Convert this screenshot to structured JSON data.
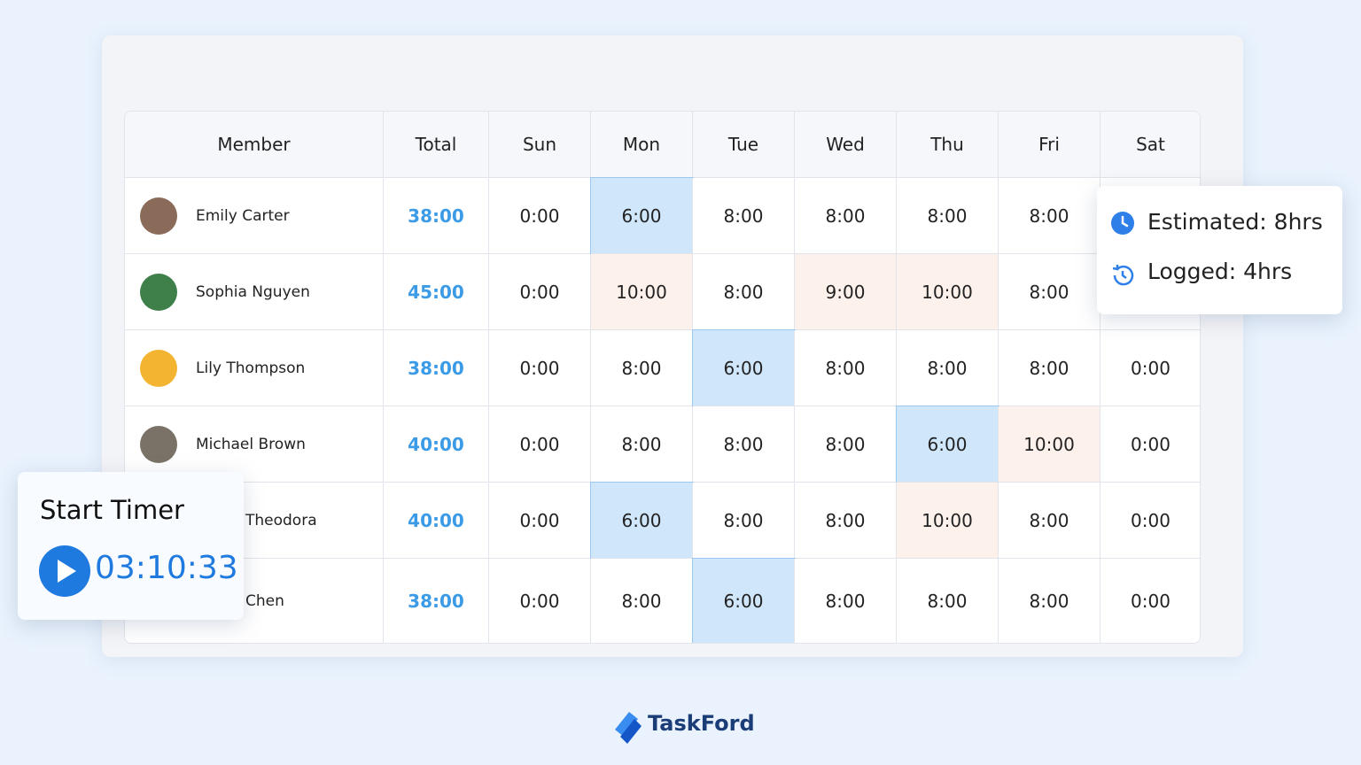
{
  "table": {
    "columns": [
      "Member",
      "Total",
      "Sun",
      "Mon",
      "Tue",
      "Wed",
      "Thu",
      "Fri",
      "Sat"
    ],
    "rows": [
      {
        "member": "Emily Carter",
        "total": "38:00",
        "days": [
          "0:00",
          "6:00",
          "8:00",
          "8:00",
          "8:00",
          "8:00",
          null
        ]
      },
      {
        "member": "Sophia Nguyen",
        "total": "45:00",
        "days": [
          "0:00",
          "10:00",
          "8:00",
          "9:00",
          "10:00",
          "8:00",
          null
        ]
      },
      {
        "member": "Lily Thompson",
        "total": "38:00",
        "days": [
          "0:00",
          "8:00",
          "6:00",
          "8:00",
          "8:00",
          "8:00",
          "0:00"
        ]
      },
      {
        "member": "Michael Brown",
        "total": "40:00",
        "days": [
          "0:00",
          "8:00",
          "8:00",
          "8:00",
          "6:00",
          "10:00",
          "0:00"
        ]
      },
      {
        "member": "Theodora",
        "total": "40:00",
        "days": [
          "0:00",
          "6:00",
          "8:00",
          "8:00",
          "10:00",
          "8:00",
          "0:00"
        ]
      },
      {
        "member": "Chen",
        "total": "38:00",
        "days": [
          "0:00",
          "8:00",
          "6:00",
          "8:00",
          "8:00",
          "8:00",
          "0:00"
        ]
      }
    ],
    "highlight_colors": {
      "under": "#cfe6fb",
      "over": "#fdf1ec"
    },
    "highlights": [
      [
        0,
        1,
        "under"
      ],
      [
        1,
        1,
        "over"
      ],
      [
        1,
        3,
        "over"
      ],
      [
        1,
        4,
        "over"
      ],
      [
        2,
        2,
        "under"
      ],
      [
        3,
        4,
        "under"
      ],
      [
        3,
        5,
        "over"
      ],
      [
        4,
        1,
        "under"
      ],
      [
        4,
        4,
        "over"
      ],
      [
        5,
        2,
        "under"
      ]
    ]
  },
  "estimate_popup": {
    "estimated": "Estimated: 8hrs",
    "logged": "Logged: 4hrs"
  },
  "timer": {
    "label": "Start Timer",
    "time": "03:10:33"
  },
  "brand": "TaskFord"
}
